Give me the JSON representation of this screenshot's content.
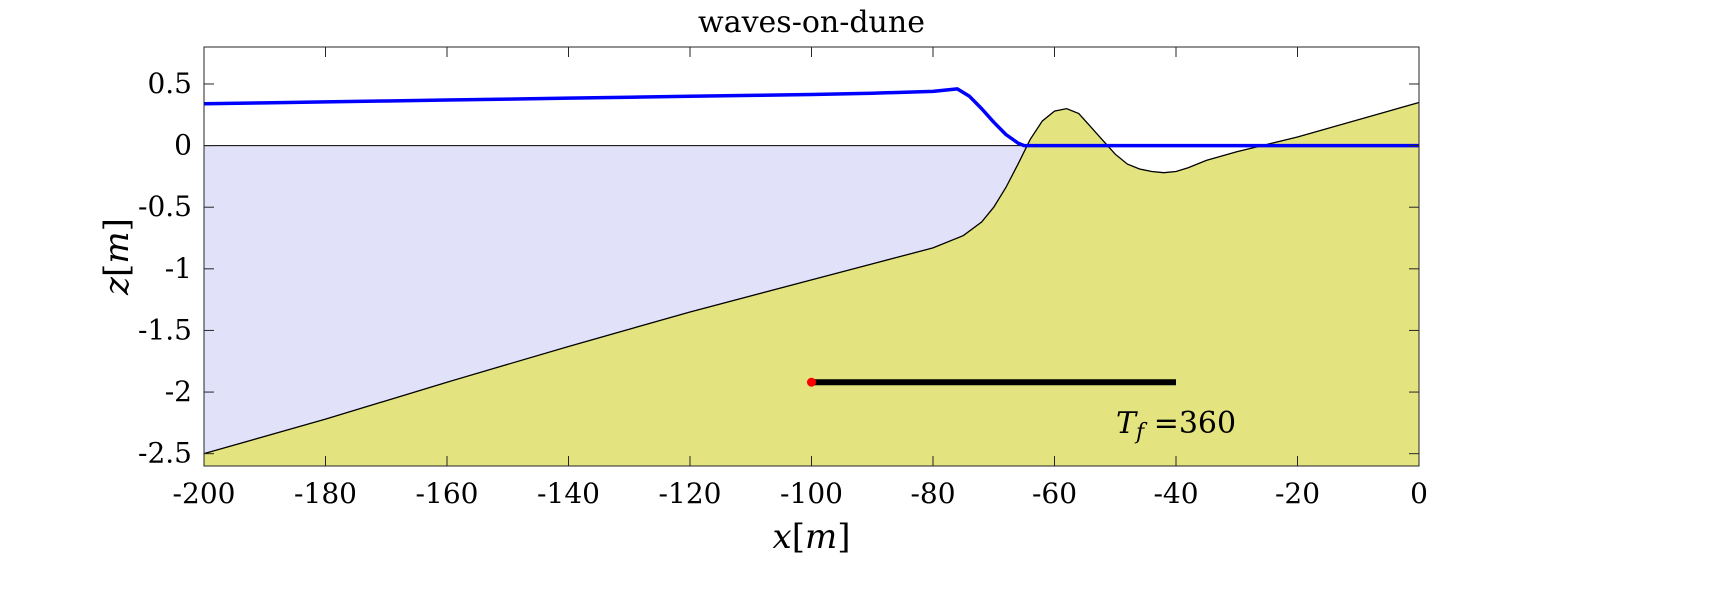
{
  "chart_data": {
    "type": "area",
    "title": "waves-on-dune",
    "xlabel": "x[m]",
    "ylabel": "z[m]",
    "xlim": [
      -200,
      0
    ],
    "ylim": [
      -2.6,
      0.8
    ],
    "grid": false,
    "xticks": [
      "-200",
      "-180",
      "-160",
      "-140",
      "-120",
      "-100",
      "-80",
      "-60",
      "-40",
      "-20",
      "0"
    ],
    "yticks": [
      "0.5",
      "0",
      "-0.5",
      "-1",
      "-1.5",
      "-2",
      "-2.5"
    ],
    "series": [
      {
        "color": "#000000",
        "fill": "#e3e37f",
        "x": [
          -200,
          -180,
          -160,
          -140,
          -120,
          -100,
          -90,
          -80,
          -75,
          -72,
          -70,
          -68,
          -66,
          -64,
          -62,
          -60,
          -58,
          -56,
          -54,
          -52,
          -50,
          -48,
          -46,
          -44,
          -42,
          -40,
          -38,
          -35,
          -30,
          -25,
          -20,
          -15,
          -10,
          -5,
          0
        ],
        "y": [
          -2.5,
          -2.22,
          -1.92,
          -1.63,
          -1.35,
          -1.09,
          -0.96,
          -0.83,
          -0.73,
          -0.62,
          -0.5,
          -0.34,
          -0.15,
          0.05,
          0.2,
          0.28,
          0.3,
          0.26,
          0.15,
          0.04,
          -0.07,
          -0.15,
          -0.19,
          -0.21,
          -0.22,
          -0.21,
          -0.18,
          -0.12,
          -0.05,
          0.01,
          0.07,
          0.14,
          0.21,
          0.28,
          0.35
        ]
      },
      {
        "color": "#0000ff",
        "x": [
          -200,
          -190,
          -180,
          -170,
          -160,
          -150,
          -140,
          -130,
          -120,
          -110,
          -100,
          -90,
          -80,
          -76,
          -74,
          -72,
          -70,
          -68,
          -66,
          -65,
          -60,
          -40,
          -20,
          0
        ],
        "y": [
          0.34,
          0.347,
          0.355,
          0.362,
          0.37,
          0.377,
          0.385,
          0.392,
          0.4,
          0.407,
          0.415,
          0.425,
          0.44,
          0.46,
          0.4,
          0.3,
          0.19,
          0.09,
          0.02,
          0.0,
          0.0,
          0.0,
          0.0,
          0.0
        ]
      },
      {
        "color": "#000000",
        "x": [
          -100,
          -40
        ],
        "y": [
          -1.92,
          -1.92
        ]
      }
    ],
    "still_water_level": 0,
    "water_fill": "#e1e1fa",
    "marker": {
      "x": -100,
      "y": -1.92,
      "color": "#ff0000"
    },
    "annotation": {
      "text": "T_f =360",
      "x": -40,
      "y": -2.25
    }
  }
}
